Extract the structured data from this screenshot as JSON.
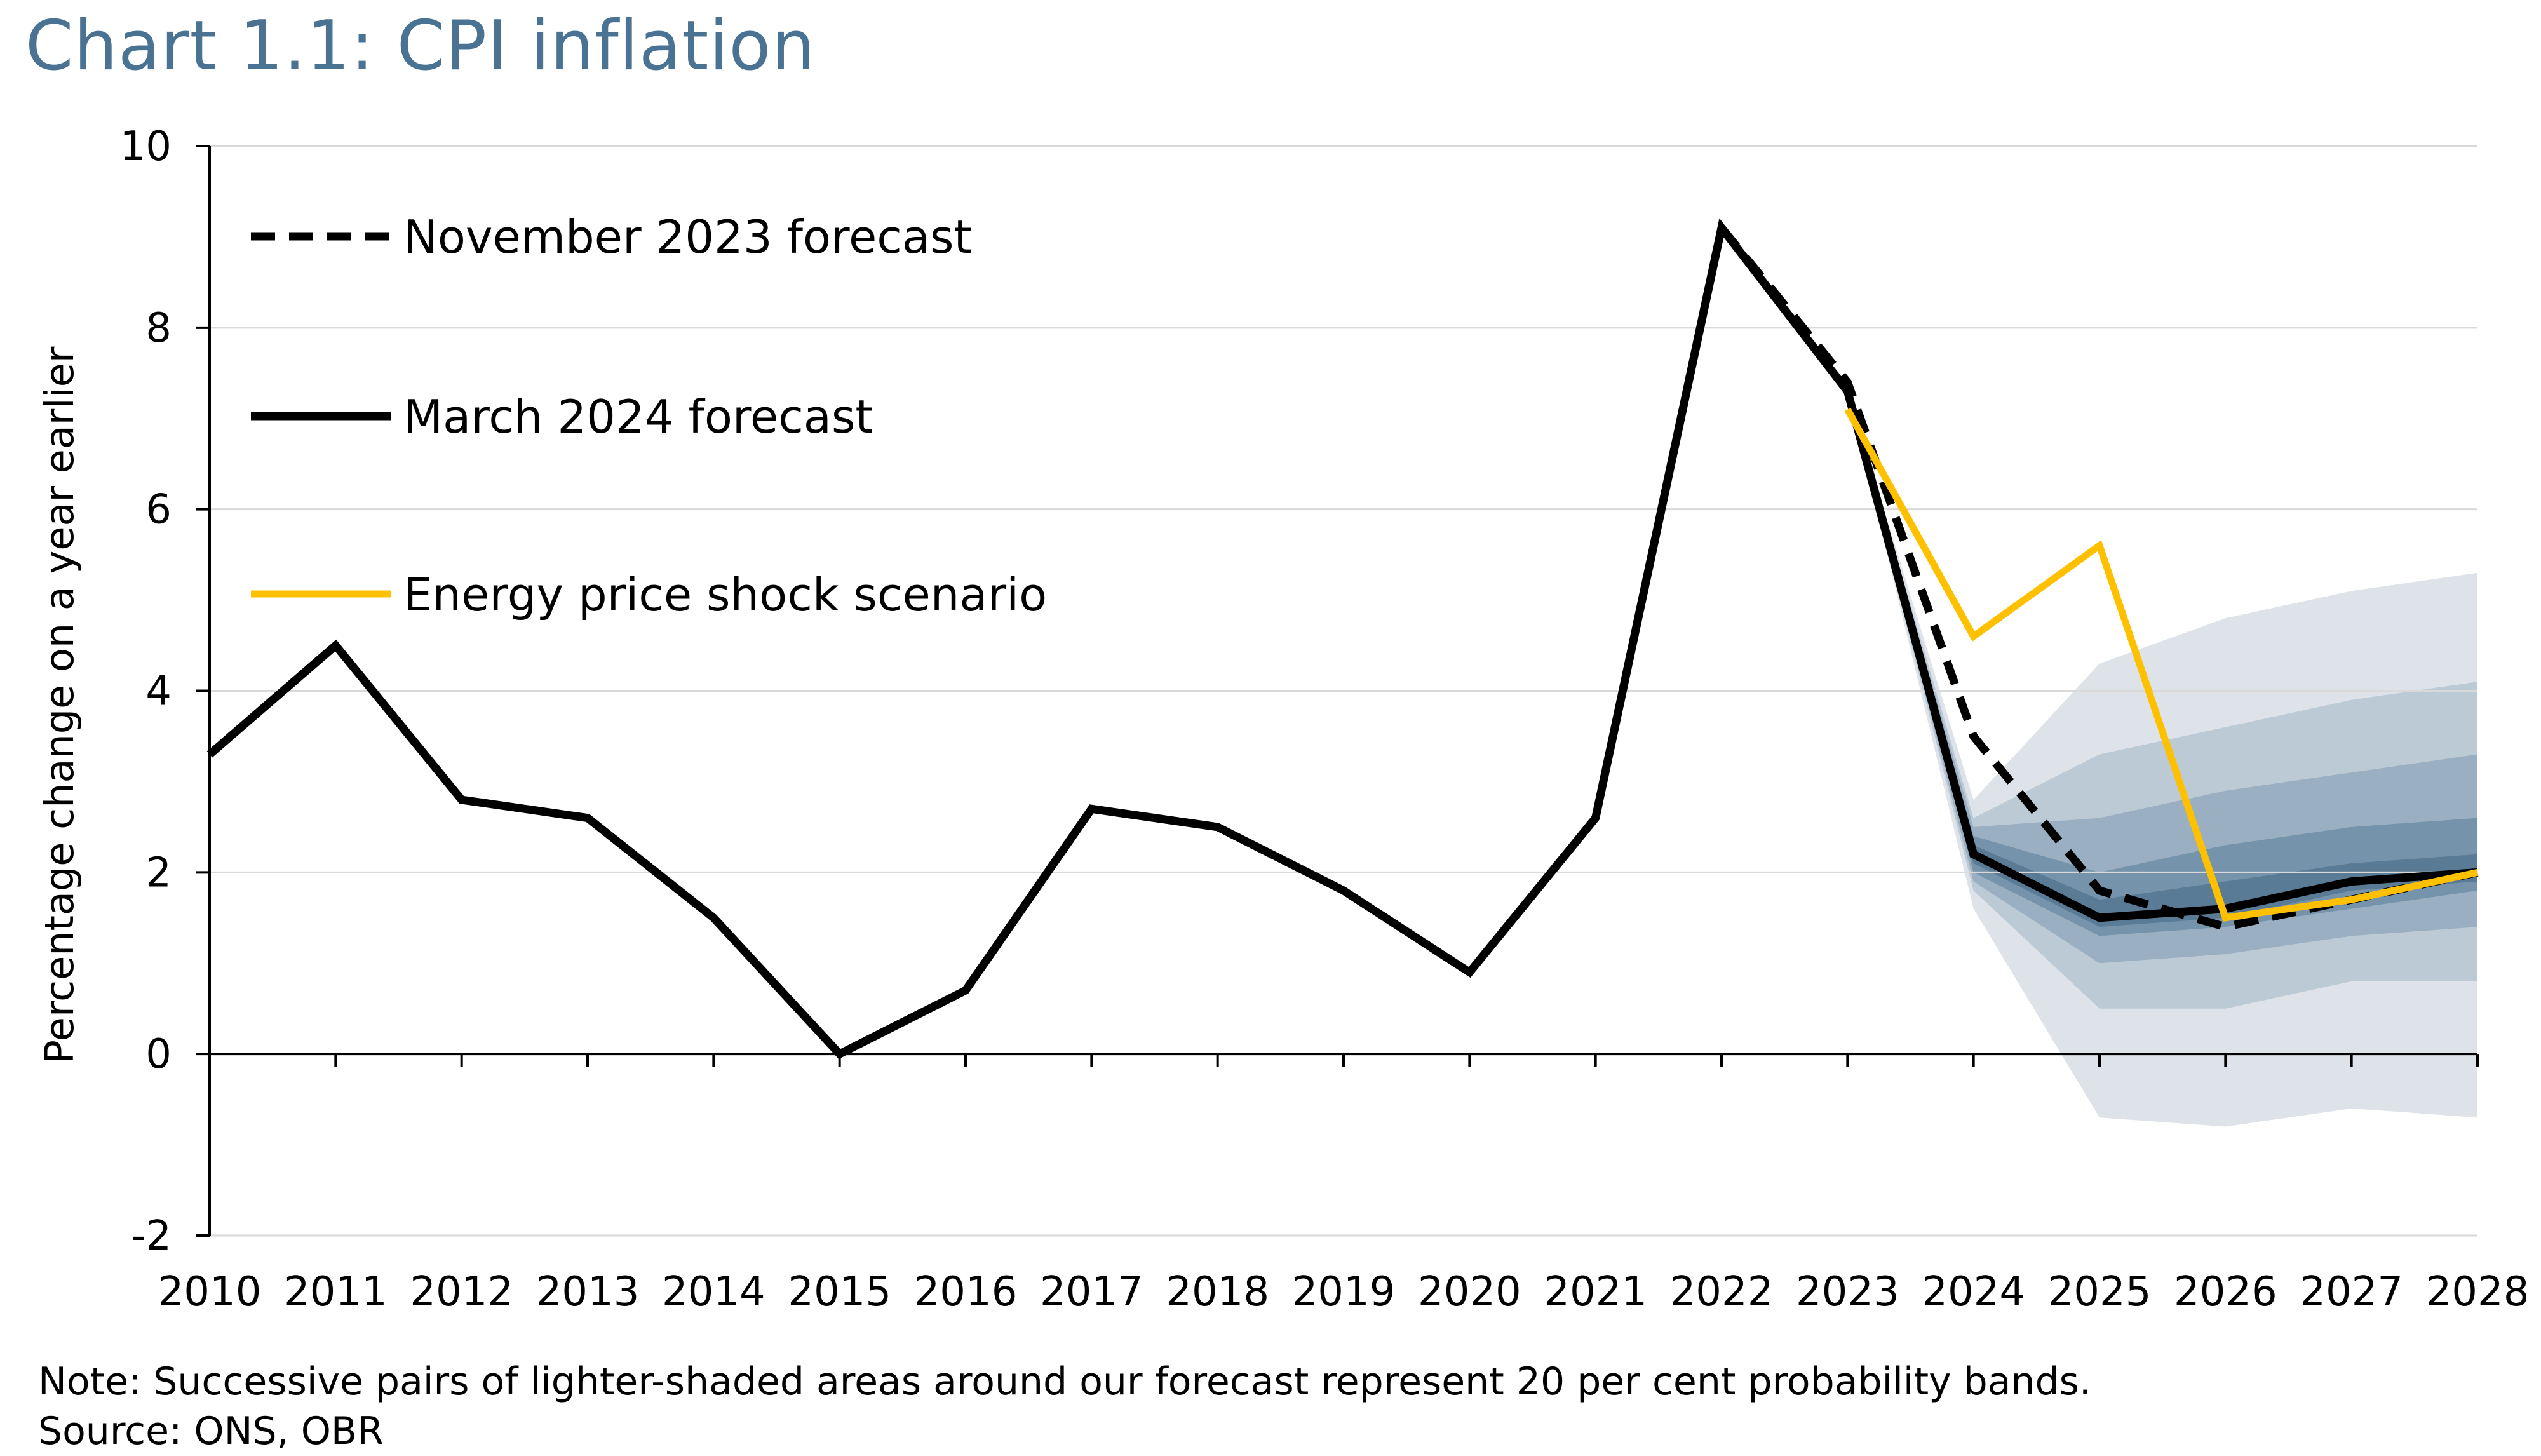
{
  "chart_data": {
    "type": "line",
    "title": "Chart 1.1: CPI inflation",
    "ylabel": "Percentage change on a year earlier",
    "xlabel": "",
    "ylim": [
      -2,
      10
    ],
    "yticks": [
      -2,
      0,
      2,
      4,
      6,
      8,
      10
    ],
    "xlim": [
      2010,
      2028
    ],
    "xticks": [
      2010,
      2011,
      2012,
      2013,
      2014,
      2015,
      2016,
      2017,
      2018,
      2019,
      2020,
      2021,
      2022,
      2023,
      2024,
      2025,
      2026,
      2027,
      2028
    ],
    "grid": true,
    "legend_position": "top-left",
    "series": [
      {
        "name": "November 2023 forecast",
        "style": "dashed",
        "color": "#000000",
        "x": [
          2022,
          2023,
          2024,
          2025,
          2026,
          2027,
          2028
        ],
        "values": [
          9.1,
          7.4,
          3.5,
          1.8,
          1.4,
          1.7,
          2.0
        ]
      },
      {
        "name": "March 2024 forecast",
        "style": "solid",
        "color": "#000000",
        "x": [
          2010,
          2011,
          2012,
          2013,
          2014,
          2015,
          2016,
          2017,
          2018,
          2019,
          2020,
          2021,
          2022,
          2023,
          2024,
          2025,
          2026,
          2027,
          2028
        ],
        "values": [
          3.3,
          4.5,
          2.8,
          2.6,
          1.5,
          0.0,
          0.7,
          2.7,
          2.5,
          1.8,
          0.9,
          2.6,
          9.1,
          7.3,
          2.2,
          1.5,
          1.6,
          1.9,
          2.0
        ]
      },
      {
        "name": "Energy price shock scenario",
        "style": "solid",
        "color": "#ffc000",
        "x": [
          2023,
          2024,
          2025,
          2026,
          2027,
          2028
        ],
        "values": [
          7.1,
          4.6,
          5.6,
          1.5,
          1.7,
          2.0
        ]
      }
    ],
    "fan_bands": {
      "x": [
        2023,
        2024,
        2025,
        2026,
        2027,
        2028
      ],
      "center": [
        7.3,
        2.2,
        1.5,
        1.6,
        1.9,
        2.0
      ],
      "bands": [
        {
          "lower": [
            7.3,
            1.6,
            -0.7,
            -0.8,
            -0.6,
            -0.7
          ],
          "upper": [
            7.3,
            2.8,
            4.3,
            4.8,
            5.1,
            5.3
          ],
          "color": "#dde3e9"
        },
        {
          "lower": [
            7.3,
            1.8,
            0.5,
            0.5,
            0.8,
            0.8
          ],
          "upper": [
            7.3,
            2.6,
            3.3,
            3.6,
            3.9,
            4.1
          ],
          "color": "#bccad6"
        },
        {
          "lower": [
            7.3,
            1.9,
            1.0,
            1.1,
            1.3,
            1.4
          ],
          "upper": [
            7.3,
            2.5,
            2.6,
            2.9,
            3.1,
            3.3
          ],
          "color": "#9aafc1"
        },
        {
          "lower": [
            7.3,
            2.0,
            1.3,
            1.4,
            1.6,
            1.8
          ],
          "upper": [
            7.3,
            2.4,
            2.0,
            2.3,
            2.5,
            2.6
          ],
          "color": "#7593ab"
        },
        {
          "lower": [
            7.3,
            2.1,
            1.4,
            1.5,
            1.8,
            1.9
          ],
          "upper": [
            7.3,
            2.3,
            1.7,
            1.9,
            2.1,
            2.2
          ],
          "color": "#5a7b96"
        }
      ]
    },
    "note": "Note: Successive pairs of lighter-shaded areas around our forecast represent 20 per cent probability bands.",
    "source": "Source: ONS, OBR"
  }
}
